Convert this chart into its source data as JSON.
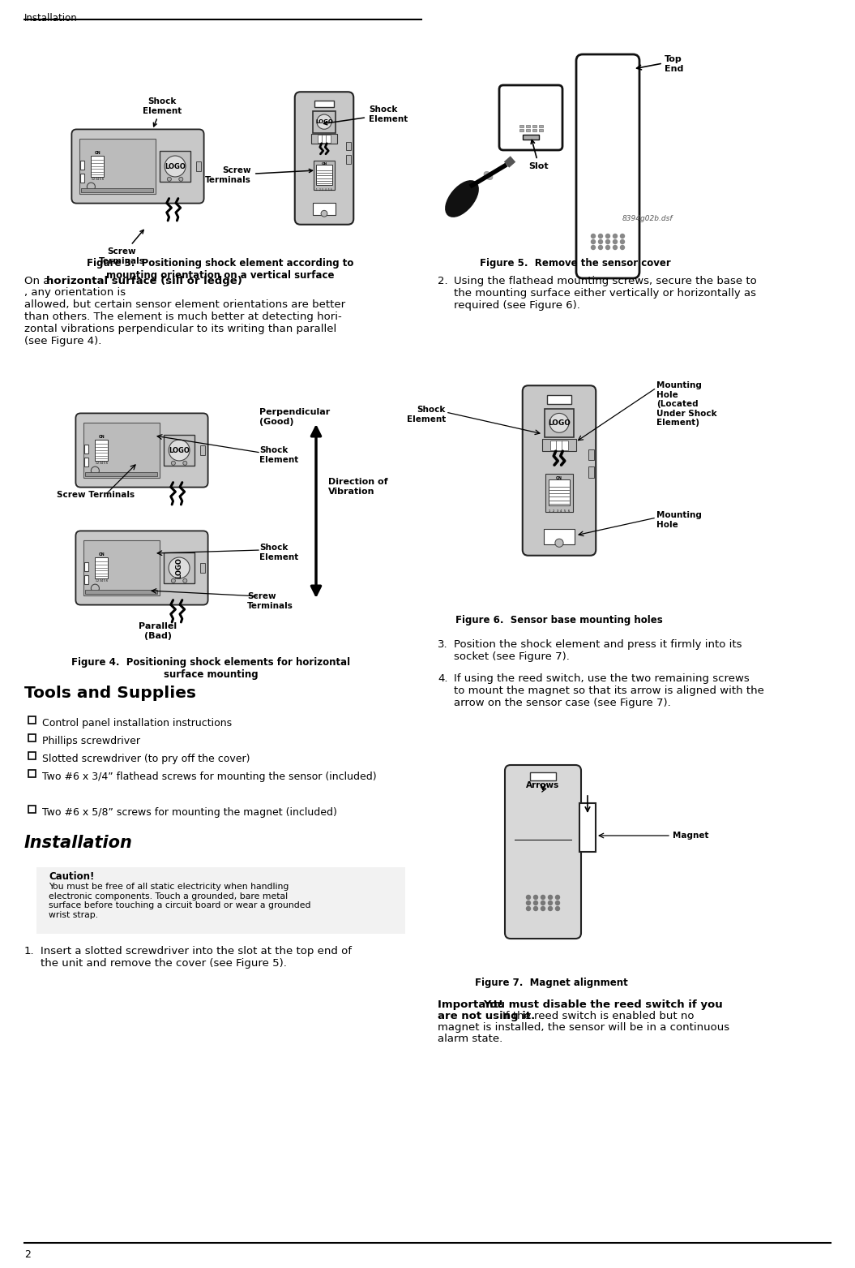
{
  "page_title": "Installation",
  "page_number": "2",
  "background_color": "#ffffff",
  "fig3_caption": "Figure 3.  Positioning shock element according to\nmounting orientation on a vertical surface",
  "fig4_caption": "Figure 4.  Positioning shock elements for horizontal\nsurface mounting",
  "fig5_caption": "Figure 5.  Remove the sensor cover",
  "fig6_caption": "Figure 6.  Sensor base mounting holes",
  "fig7_caption": "Figure 7.  Magnet alignment",
  "tools_heading": "Tools and Supplies",
  "tools_items": [
    "Control panel installation instructions",
    "Phillips screwdriver",
    "Slotted screwdriver (to pry off the cover)",
    "Two #6 x 3/4” flathead screws for mounting the sensor (included)",
    "Two #6 x 5/8” screws for mounting the magnet (included)"
  ],
  "install_heading": "Installation",
  "caution_title": "Caution!",
  "caution_text": "You must be free of all static electricity when handling\nelectronic components. Touch a grounded, bare metal\nsurface before touching a circuit board or wear a grounded\nwrist strap.",
  "step1_num": "1.",
  "step1_text": "Insert a slotted screwdriver into the slot at the top end of\nthe unit and remove the cover (see Figure 5).",
  "step2_num": "2.",
  "step2_text": "Using the flathead mounting screws, secure the base to\nthe mounting surface either vertically or horizontally as\nrequired (see Figure 6).",
  "step3_num": "3.",
  "step3_text": "Position the shock element and press it firmly into its\nsocket (see Figure 7).",
  "step4_num": "4.",
  "step4_text": "If using the reed switch, use the two remaining screws\nto mount the magnet so that its arrow is aligned with the\narrow on the sensor case (see Figure 7).",
  "important_bold": "Important! You must disable the reed switch if you\nare not using it.",
  "important_normal": " If the reed switch is enabled but no\nmagnet is installed, the sensor will be in a continuous\nalarm state.",
  "body_bold": "horizontal surface (sill or ledge)",
  "body_pre": "On a ",
  "body_post": ", any orientation is\nallowed, but certain sensor element orientations are better\nthan others. The element is much better at detecting hori-\nzontal vibrations perpendicular to its writing than parallel\n(see Figure 4).",
  "fig5_slot": "Slot",
  "fig5_topend": "Top\nEnd",
  "fig5_filenum": "8394g02b.dsf",
  "fig6_shock": "Shock\nElement",
  "fig6_mh1": "Mounting\nHole\n(Located\nUnder Shock\nElement)",
  "fig6_mh2": "Mounting\nHole",
  "fig4_perp": "Perpendicular\n(Good)",
  "fig4_par": "Parallel\n(Bad)",
  "fig4_dir": "Direction of\nVibration",
  "fig3_shock1": "Shock\nElement",
  "fig3_shock2": "Shock\nElement",
  "fig3_screw1": "Screw\nTerminals",
  "fig3_screw2": "Screw\nTerminals",
  "fig4_shock1": "Shock\nElement",
  "fig4_shock2": "Shock\nElement",
  "fig4_screw1": "Screw Terminals",
  "fig4_screw2": "Screw\nTerminals",
  "fig7_arrows": "Arrows",
  "fig7_magnet": "Magnet",
  "logo_label": "LOGO"
}
